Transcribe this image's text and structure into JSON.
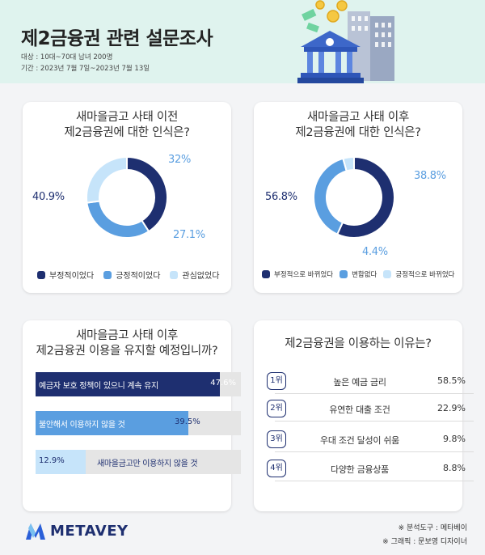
{
  "header": {
    "title": "제2금융권 관련 설문조사",
    "target": "대상 : 10대~70대 남녀 200명",
    "period": "기간 : 2023년 7월 7일~2023년 7월 13일"
  },
  "colors": {
    "dark": "#1e2f70",
    "mid": "#5a9ee0",
    "light": "#c6e4fa"
  },
  "chart_data": [
    {
      "type": "pie",
      "title": "새마을금고 사태 이전 제2금융권에 대한 인식은?",
      "title_lines": [
        "새마을금고 사태 이전",
        "제2금융권에 대한 인식은?"
      ],
      "categories": [
        "부정적이었다",
        "긍정적이었다",
        "관심없었다"
      ],
      "values": [
        40.9,
        32,
        27.1
      ],
      "labels": [
        "40.9%",
        "32%",
        "27.1%"
      ],
      "colors": [
        "#1e2f70",
        "#5a9ee0",
        "#c6e4fa"
      ],
      "legend": "bottom"
    },
    {
      "type": "pie",
      "title": "새마을금고 사태 이후 제2금융권에 대한 인식은?",
      "title_lines": [
        "새마을금고 사태 이후",
        "제2금융권에 대한 인식은?"
      ],
      "categories": [
        "부정적으로 바뀌었다",
        "변함없다",
        "긍정적으로 바뀌었다"
      ],
      "values": [
        56.8,
        38.8,
        4.4
      ],
      "labels": [
        "56.8%",
        "38.8%",
        "4.4%"
      ],
      "colors": [
        "#1e2f70",
        "#5a9ee0",
        "#c6e4fa"
      ],
      "legend": "bottom"
    },
    {
      "type": "bar",
      "orientation": "horizontal",
      "title": "새마을금고 사태 이후 제2금융권 이용을 유지할 예정입니까?",
      "title_lines": [
        "새마을금고 사태 이후",
        "제2금융권 이용을 유지할 예정입니까?"
      ],
      "categories": [
        "예금자 보호 정책이 있으니 계속 유지",
        "불안해서 이용하지 않을 것",
        "새마을금고만 이용하지 않을 것"
      ],
      "values": [
        47.6,
        39.5,
        12.9
      ],
      "labels": [
        "47.6%",
        "39.5%",
        "12.9%"
      ],
      "colors": [
        "#1e2f70",
        "#5a9ee0",
        "#c6e4fa"
      ]
    },
    {
      "type": "table",
      "title": "제2금융권을 이용하는 이유는?",
      "rows": [
        {
          "rank": "1위",
          "label": "높은 예금 금리",
          "value": "58.5%"
        },
        {
          "rank": "2위",
          "label": "유연한 대출 조건",
          "value": "22.9%"
        },
        {
          "rank": "3위",
          "label": "우대 조건 달성이 쉬움",
          "value": "9.8%"
        },
        {
          "rank": "4위",
          "label": "다양한 금융상품",
          "value": "8.8%"
        }
      ]
    }
  ],
  "footer": {
    "logo": "METAVEY",
    "credit_tool": "※ 분석도구 : 메타베이",
    "credit_graphic": "※ 그래픽 : 문보영 디자이너"
  }
}
